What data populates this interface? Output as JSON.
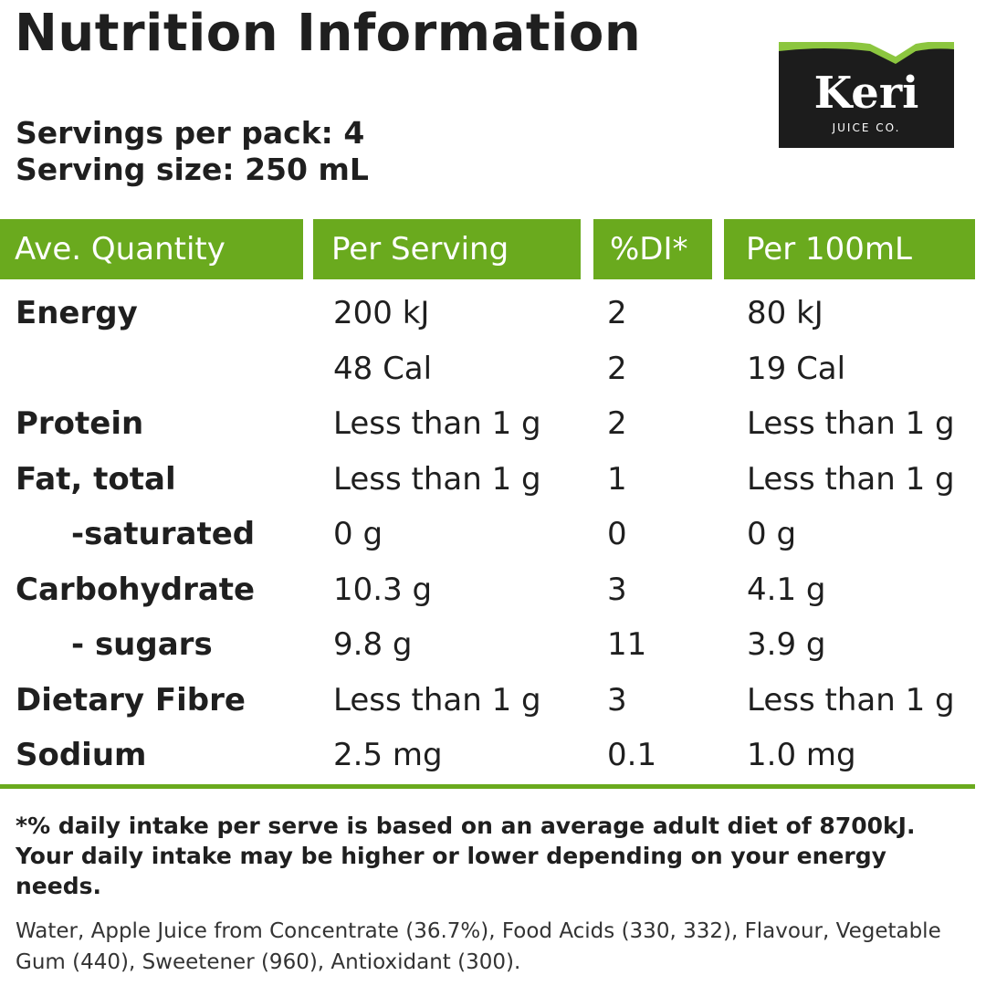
{
  "title": "Nutrition Information",
  "servings_per_pack": "Servings per pack: 4",
  "serving_size": "Serving size: 250 mL",
  "logo": {
    "brand": "Keri",
    "sub": "JUICE CO.",
    "colors": {
      "background": "#1c1c1c",
      "accent": "#8cc63f"
    }
  },
  "accent_color": "#6aaa1e",
  "table": {
    "headers": [
      "Ave. Quantity",
      "Per Serving",
      "%DI*",
      "Per 100mL"
    ],
    "rows": [
      [
        "Energy",
        "200 kJ",
        "2",
        "80 kJ"
      ],
      [
        "",
        "48 Cal",
        "2",
        "19 Cal"
      ],
      [
        "Protein",
        "Less than 1 g",
        "2",
        "Less than 1 g"
      ],
      [
        "Fat, total",
        "Less than 1 g",
        "1",
        "Less than 1 g"
      ],
      [
        "   -saturated",
        "0 g",
        "0",
        "0 g"
      ],
      [
        "Carbohydrate",
        "10.3 g",
        "3",
        "4.1 g"
      ],
      [
        "   - sugars",
        "9.8 g",
        "11",
        "3.9 g"
      ],
      [
        "Dietary Fibre",
        "Less than 1 g",
        "3",
        "Less than 1 g"
      ],
      [
        "Sodium",
        "2.5 mg",
        "0.1",
        "1.0 mg"
      ]
    ]
  },
  "footnote": "*% daily intake per serve is based on an average adult diet of 8700kJ. Your daily intake may be higher or lower depending on your energy needs.",
  "ingredients": "Water, Apple Juice from Concentrate (36.7%), Food Acids (330, 332), Flavour, Vegetable Gum (440), Sweetener (960), Antioxidant (300)."
}
